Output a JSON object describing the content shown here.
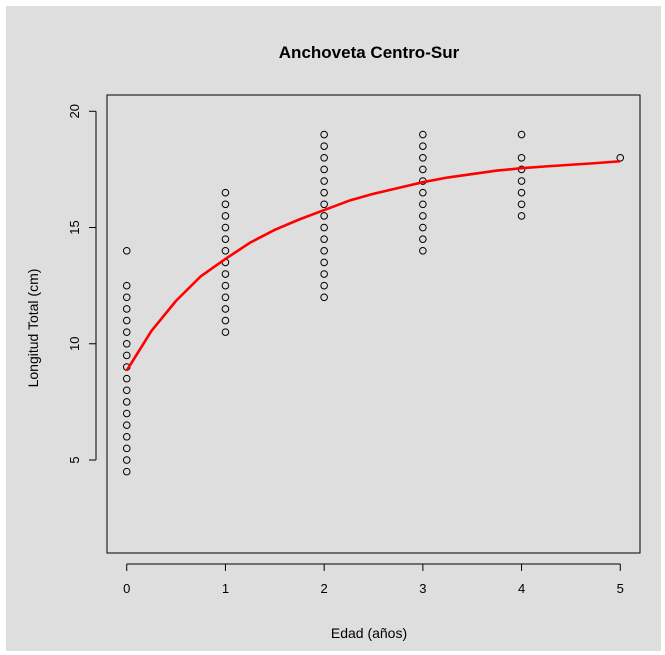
{
  "chart_data": {
    "type": "scatter",
    "title": "Anchoveta Centro-Sur",
    "xlabel": "Edad (años)",
    "ylabel": "Longitud Total (cm)",
    "xlim": [
      -0.2,
      5.2
    ],
    "ylim": [
      1,
      20.7
    ],
    "xticks": [
      0,
      1,
      2,
      3,
      4,
      5
    ],
    "yticks": [
      5,
      10,
      15,
      20
    ],
    "grid": false,
    "colors": {
      "points": "#000000",
      "curve": "#ff0000",
      "background": "#dedede"
    },
    "points": [
      {
        "x": 0,
        "y": [
          4.5,
          5,
          5.5,
          6,
          6.5,
          7,
          7.5,
          8,
          8.5,
          9,
          9.5,
          10,
          10.5,
          11,
          11.5,
          12,
          12.5,
          14
        ]
      },
      {
        "x": 1,
        "y": [
          10.5,
          11,
          11.5,
          12,
          12.5,
          13,
          13.5,
          14,
          14.5,
          15,
          15.5,
          16,
          16.5
        ]
      },
      {
        "x": 2,
        "y": [
          12,
          12.5,
          13,
          13.5,
          14,
          14.5,
          15,
          15.5,
          16,
          16.5,
          17,
          17.5,
          18,
          18.5,
          19
        ]
      },
      {
        "x": 3,
        "y": [
          14,
          14.5,
          15,
          15.5,
          16,
          16.5,
          17,
          17.5,
          18,
          18.5,
          19
        ]
      },
      {
        "x": 4,
        "y": [
          15.5,
          16,
          16.5,
          17,
          17.5,
          18,
          19
        ]
      },
      {
        "x": 5,
        "y": [
          18
        ]
      }
    ],
    "curve": {
      "x": [
        0,
        0.25,
        0.5,
        0.75,
        1,
        1.25,
        1.5,
        1.75,
        2,
        2.25,
        2.5,
        2.75,
        3,
        3.25,
        3.5,
        3.75,
        4,
        4.25,
        4.5,
        4.75,
        5
      ],
      "y": [
        8.85,
        10.55,
        11.85,
        12.9,
        13.65,
        14.35,
        14.9,
        15.35,
        15.75,
        16.15,
        16.45,
        16.7,
        16.95,
        17.15,
        17.3,
        17.45,
        17.55,
        17.63,
        17.7,
        17.77,
        17.85
      ]
    }
  }
}
